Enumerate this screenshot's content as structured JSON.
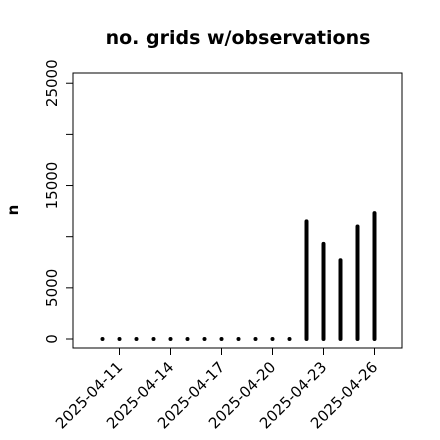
{
  "chart_data": {
    "type": "bar",
    "title": "no. grids w/observations",
    "xlabel": "",
    "ylabel": "n",
    "x": [
      "2025-04-10",
      "2025-04-11",
      "2025-04-12",
      "2025-04-13",
      "2025-04-14",
      "2025-04-15",
      "2025-04-16",
      "2025-04-17",
      "2025-04-18",
      "2025-04-19",
      "2025-04-20",
      "2025-04-21",
      "2025-04-22",
      "2025-04-23",
      "2025-04-24",
      "2025-04-25",
      "2025-04-26"
    ],
    "values": [
      0,
      0,
      0,
      0,
      0,
      0,
      0,
      0,
      0,
      0,
      0,
      0,
      11500,
      9300,
      7700,
      11000,
      12300
    ],
    "ylim": [
      0,
      26000
    ],
    "yticks": [
      0,
      5000,
      10000,
      15000,
      20000,
      25000
    ],
    "ytick_labels": [
      "0",
      "5000",
      "",
      "15000",
      "",
      "25000"
    ],
    "xtick_labels": [
      {
        "date": "2025-04-11",
        "label": "2025-04-11",
        "color": "#000000"
      },
      {
        "date": "2025-04-14",
        "label": "2025-04-14",
        "color": "#000000"
      },
      {
        "date": "2025-04-17",
        "label": "2025-04-17",
        "color": "#228B22"
      },
      {
        "date": "2025-04-20",
        "label": "2025-04-20",
        "color": "#000000"
      },
      {
        "date": "2025-04-23",
        "label": "2025-04-23",
        "color": "#000000"
      },
      {
        "date": "2025-04-26",
        "label": "2025-04-26",
        "color": "#000000"
      }
    ],
    "grid": false,
    "bar_color": "#000000"
  }
}
